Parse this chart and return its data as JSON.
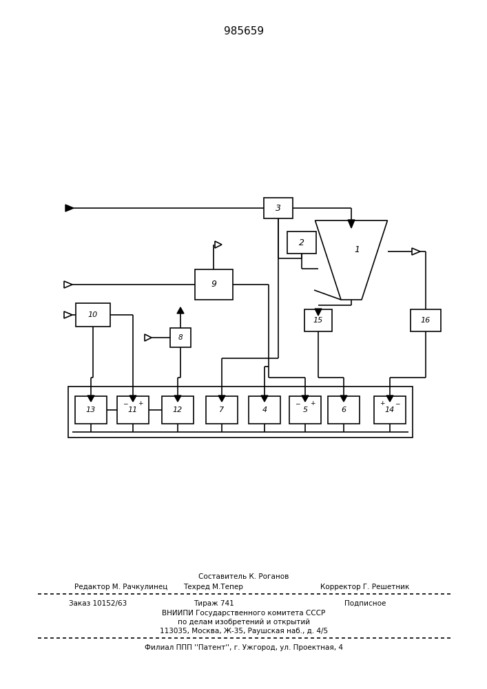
{
  "patent_number": "985659",
  "bg_color": "#ffffff",
  "line_color": "#000000",
  "lw": 1.2,
  "footer": {
    "line1": "Составитель К. Роганов",
    "line2_left": "Редактор М. Рачкулинец",
    "line2_mid": "Техред М.Тепер",
    "line2_right": "Корректор Г. Решетник",
    "line3_left": "Заказ 10152/63",
    "line3_mid": "Тираж 741",
    "line3_right": "Подписное",
    "line4": "ВНИИПИ Государственного комитета СССР",
    "line5": "по делам изобретений и открытий",
    "line6": "113035, Москва, Ж-35, Раушская наб., д. 4/5",
    "line7": "Филиал ППП ''Патент'', г. Ужгород, ул. Проектная, 4"
  }
}
